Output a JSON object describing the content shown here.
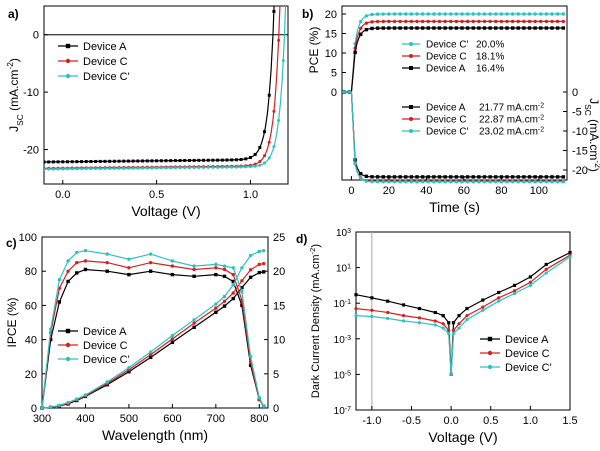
{
  "colors": {
    "A": "#000000",
    "C": "#d62020",
    "Cp": "#2cc2c2"
  },
  "chart_data": [
    {
      "id": "a",
      "panel_label": "a)",
      "type": "line",
      "xlabel": "Voltage (V)",
      "ylabel": "J",
      "ylabel_sub": "SC",
      "ylabel_unit": " (mA.cm",
      "ylabel_sup": "-2",
      "ylabel_end": ")",
      "xlim": [
        -0.1,
        1.2
      ],
      "ylim": [
        -26,
        5
      ],
      "xticks": [
        0.0,
        0.5,
        1.0
      ],
      "xtick_labels": [
        "0.0",
        "0.5",
        "1.0"
      ],
      "yticks": [
        -20,
        -10,
        0
      ],
      "ytick_labels": [
        "-20",
        "-10",
        "0"
      ],
      "legend": {
        "position": "top-left",
        "entries": [
          "Device A",
          "Device C",
          "Device C'"
        ]
      },
      "series": [
        {
          "name": "Device A",
          "color_key": "A",
          "marker": "square",
          "jsc": 21.77,
          "voc": 1.06
        },
        {
          "name": "Device C",
          "color_key": "C",
          "marker": "circle",
          "jsc": 22.87,
          "voc": 1.09
        },
        {
          "name": "Device C'",
          "color_key": "Cp",
          "marker": "circle",
          "jsc": 23.02,
          "voc": 1.12
        }
      ]
    },
    {
      "id": "b",
      "panel_label": "b)",
      "type": "line",
      "xlabel": "Time (s)",
      "ylabel_left": "PCE (%)",
      "ylabel_right": "J",
      "ylabel_right_sub": "SC",
      "ylabel_right_unit": " (mA.cm",
      "ylabel_right_sup": "-2",
      "ylabel_right_end": ")",
      "xlim": [
        -5,
        115
      ],
      "xticks": [
        0,
        20,
        40,
        60,
        80,
        100
      ],
      "xtick_labels": [
        "0",
        "20",
        "40",
        "60",
        "80",
        "100"
      ],
      "yticks_left": [
        20,
        15,
        10,
        5,
        0
      ],
      "ytick_left_labels": [
        "20",
        "15",
        "10",
        "5",
        "0"
      ],
      "yticks_right": [
        0,
        -5,
        -10,
        -15,
        -20
      ],
      "ytick_right_labels": [
        "0",
        "-5",
        "-10",
        "-15",
        "-20"
      ],
      "pce_legend": [
        {
          "name": "Device C'",
          "value": "20.0%",
          "color_key": "Cp",
          "pce": 20.0
        },
        {
          "name": "Device C",
          "value": "18.1%",
          "color_key": "C",
          "pce": 18.1
        },
        {
          "name": "Device A",
          "value": "16.4%",
          "color_key": "A",
          "pce": 16.4
        }
      ],
      "jsc_legend": [
        {
          "name": "Device A",
          "value": "21.77 mA.cm",
          "sup": "-2",
          "color_key": "A",
          "jsc": 21.77
        },
        {
          "name": "Device C",
          "value": "22.87 mA.cm",
          "sup": "-2",
          "color_key": "C",
          "jsc": 22.87
        },
        {
          "name": "Device C'",
          "value": "23.02 mA.cm",
          "sup": "-2",
          "color_key": "Cp",
          "jsc": 23.02
        }
      ]
    },
    {
      "id": "c",
      "panel_label": "c)",
      "type": "line",
      "xlabel": "Wavelength (nm)",
      "ylabel_left": "IPCE (%)",
      "xlim": [
        300,
        820
      ],
      "xticks": [
        300,
        400,
        500,
        600,
        700,
        800
      ],
      "xtick_labels": [
        "300",
        "400",
        "500",
        "600",
        "700",
        "800"
      ],
      "ylim_left": [
        0,
        100
      ],
      "yticks_left": [
        0,
        20,
        40,
        60,
        80,
        100
      ],
      "ytick_left_labels": [
        "0",
        "20",
        "40",
        "60",
        "80",
        "100"
      ],
      "ylim_right": [
        0,
        25
      ],
      "yticks_right": [
        0,
        5,
        10,
        15,
        20,
        25
      ],
      "ytick_right_labels": [
        "0",
        "5",
        "10",
        "15",
        "20",
        "25"
      ],
      "legend": {
        "position": "bottom-left",
        "entries": [
          "Device A",
          "Device C",
          "Device C'"
        ]
      },
      "series": [
        {
          "name": "Device A",
          "color_key": "A",
          "marker": "square",
          "x": [
            300,
            320,
            340,
            360,
            380,
            400,
            450,
            500,
            550,
            600,
            650,
            700,
            720,
            740,
            760,
            780,
            800,
            810
          ],
          "ipce": [
            0,
            40,
            62,
            74,
            79,
            81,
            80,
            78,
            80,
            78,
            77,
            78,
            77,
            74,
            60,
            25,
            5,
            1
          ],
          "jsc_int": [
            0,
            0.1,
            0.3,
            0.6,
            1.1,
            1.7,
            3.4,
            5.3,
            7.4,
            9.6,
            11.8,
            14.0,
            14.9,
            16.0,
            17.6,
            19.1,
            19.8,
            19.9
          ]
        },
        {
          "name": "Device C",
          "color_key": "C",
          "marker": "circle",
          "x": [
            300,
            320,
            340,
            360,
            380,
            400,
            450,
            500,
            550,
            600,
            650,
            700,
            720,
            740,
            760,
            780,
            800,
            810
          ],
          "ipce": [
            0,
            44,
            70,
            80,
            85,
            86,
            85,
            82,
            85,
            83,
            81,
            82,
            81,
            78,
            63,
            27,
            5,
            1
          ],
          "jsc_int": [
            0,
            0.1,
            0.3,
            0.7,
            1.2,
            1.8,
            3.6,
            5.6,
            7.8,
            10.1,
            12.4,
            14.6,
            15.6,
            16.8,
            18.6,
            20.2,
            21.0,
            21.1
          ]
        },
        {
          "name": "Device C'",
          "color_key": "Cp",
          "marker": "circle",
          "x": [
            300,
            320,
            340,
            360,
            380,
            400,
            450,
            500,
            550,
            600,
            650,
            700,
            720,
            740,
            760,
            780,
            800,
            810
          ],
          "ipce": [
            0,
            46,
            75,
            86,
            91,
            92,
            90,
            87,
            90,
            86,
            83,
            84,
            83,
            82,
            68,
            30,
            6,
            1
          ],
          "jsc_int": [
            0,
            0.1,
            0.4,
            0.8,
            1.3,
            1.9,
            3.8,
            5.9,
            8.2,
            10.6,
            12.9,
            15.2,
            16.3,
            18.0,
            20.5,
            22.3,
            22.9,
            23.0
          ]
        }
      ]
    },
    {
      "id": "d",
      "panel_label": "d)",
      "type": "line",
      "xlabel": "Voltage (V)",
      "ylabel": "Dark Current Density (mA.cm",
      "ylabel_sup": "-2",
      "ylabel_end": ")",
      "xlim": [
        -1.2,
        1.5
      ],
      "xticks": [
        -1.0,
        -0.5,
        0.0,
        0.5,
        1.0,
        1.5
      ],
      "xtick_labels": [
        "-1.0",
        "-0.5",
        "0.0",
        "0.5",
        "1.0",
        "1.5"
      ],
      "y_scale": "log",
      "ylim_exp": [
        -7,
        3
      ],
      "ytick_exps": [
        -7,
        -5,
        -3,
        -1,
        1,
        3
      ],
      "ytick_labels": [
        {
          "base": "10",
          "exp": "-7"
        },
        {
          "base": "10",
          "exp": "-5"
        },
        {
          "base": "10",
          "exp": "-3"
        },
        {
          "base": "10",
          "exp": "-1"
        },
        {
          "base": "10",
          "exp": "1"
        },
        {
          "base": "10",
          "exp": "3"
        }
      ],
      "legend": {
        "position": "bottom-right",
        "entries": [
          "Device A",
          "Device C",
          "Device C'"
        ]
      },
      "series": [
        {
          "name": "Device A",
          "color_key": "A",
          "marker": "square",
          "x": [
            -1.2,
            -1.0,
            -0.8,
            -0.6,
            -0.4,
            -0.2,
            -0.1,
            -0.03,
            0,
            0.03,
            0.1,
            0.2,
            0.4,
            0.6,
            0.8,
            1.0,
            1.2,
            1.5
          ],
          "j": [
            0.3,
            0.2,
            0.13,
            0.08,
            0.05,
            0.03,
            0.02,
            0.008,
            1e-05,
            0.008,
            0.02,
            0.05,
            0.15,
            0.4,
            1.0,
            3.0,
            15,
            70
          ]
        },
        {
          "name": "Device C",
          "color_key": "C",
          "marker": "circle",
          "x": [
            -1.2,
            -1.0,
            -0.8,
            -0.6,
            -0.4,
            -0.2,
            -0.1,
            -0.03,
            0,
            0.03,
            0.1,
            0.2,
            0.4,
            0.6,
            0.8,
            1.0,
            1.2,
            1.5
          ],
          "j": [
            0.05,
            0.04,
            0.03,
            0.02,
            0.015,
            0.01,
            0.007,
            0.003,
            1e-05,
            0.003,
            0.007,
            0.02,
            0.06,
            0.2,
            0.5,
            1.5,
            8,
            50
          ]
        },
        {
          "name": "Device C'",
          "color_key": "Cp",
          "marker": "circle",
          "x": [
            -1.2,
            -1.0,
            -0.8,
            -0.6,
            -0.4,
            -0.2,
            -0.1,
            -0.03,
            0,
            0.03,
            0.1,
            0.2,
            0.4,
            0.6,
            0.8,
            1.0,
            1.2,
            1.5
          ],
          "j": [
            0.02,
            0.018,
            0.014,
            0.01,
            0.008,
            0.006,
            0.004,
            0.002,
            1e-05,
            0.002,
            0.004,
            0.012,
            0.04,
            0.13,
            0.35,
            1.0,
            5,
            40
          ]
        }
      ]
    }
  ]
}
